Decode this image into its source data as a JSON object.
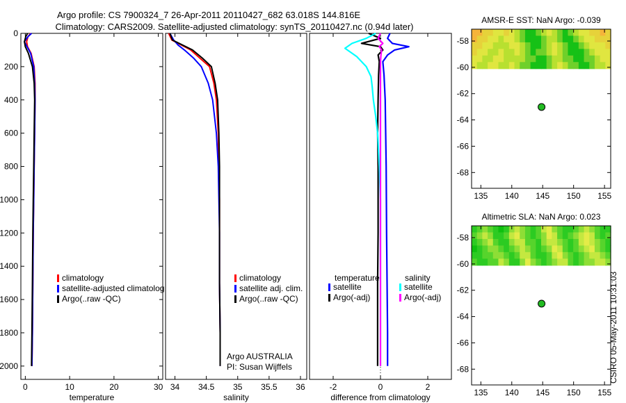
{
  "header": {
    "title_line1": "Argo profile: CS 7900324_7 26-Apr-2011 20110427_682 63.018S 144.816E",
    "title_line2": "Climatology: CARS2009. Satellite-adjusted climatology: synTS_20110427.nc (0.94d later)"
  },
  "side_label": "CSIRO 05-May-2011 10:31:03",
  "colors": {
    "climatology": "#ff0000",
    "satellite": "#0000ff",
    "argo": "#000000",
    "satellite_sal_diff": "#00ffff",
    "argo_sal_diff": "#ff00ff",
    "sst_warm": "#f5b43a",
    "sst_mid": "#e0e640",
    "sst_cool": "#16c116",
    "marker": "#22bb22"
  },
  "chart_data": [
    {
      "id": "temperature_profile",
      "type": "line",
      "xlabel": "temperature",
      "ylabel": "",
      "xlim": [
        -1,
        31
      ],
      "ylim": [
        2080,
        0
      ],
      "y_inverted": true,
      "xticks": [
        0,
        10,
        20,
        30
      ],
      "xtick_labels": [
        "0",
        "10",
        "20",
        "30"
      ],
      "yticks": [
        0,
        200,
        400,
        600,
        800,
        1000,
        1200,
        1400,
        1600,
        1800,
        2000
      ],
      "ytick_labels": [
        "0",
        "200",
        "400",
        "600",
        "800",
        "1000",
        "1200",
        "1400",
        "1600",
        "1800",
        "2000"
      ],
      "legend": [
        "climatology",
        "satellite-adjusted climatolog",
        "Argo(..raw -QC)"
      ],
      "legend_position": "lower-center",
      "series": [
        {
          "name": "climatology",
          "color": "#ff0000",
          "x": [
            1.2,
            0.6,
            0.3,
            0.5,
            1.3,
            2.0,
            2.2,
            2.2,
            2.1,
            2.0,
            1.9,
            1.8,
            1.7,
            1.6,
            1.5
          ],
          "y": [
            0,
            20,
            50,
            80,
            120,
            200,
            300,
            400,
            600,
            800,
            1000,
            1200,
            1500,
            1800,
            2000
          ]
        },
        {
          "name": "satellite-adjusted climatology",
          "color": "#0000ff",
          "x": [
            1.4,
            0.6,
            -0.2,
            0.4,
            1.2,
            1.9,
            2.1,
            2.2,
            2.1,
            2.0,
            1.9,
            1.8,
            1.7,
            1.6,
            1.5
          ],
          "y": [
            0,
            20,
            50,
            80,
            120,
            200,
            300,
            400,
            600,
            800,
            1000,
            1200,
            1500,
            1800,
            2000
          ]
        },
        {
          "name": "Argo(..raw -QC)",
          "color": "#000000",
          "x": [
            0.5,
            0.1,
            -0.2,
            0.0,
            0.7,
            1.6,
            2.0,
            2.1,
            2.0,
            1.9,
            1.8,
            1.7,
            1.6,
            1.5,
            1.4
          ],
          "y": [
            0,
            20,
            50,
            80,
            120,
            200,
            300,
            400,
            600,
            800,
            1000,
            1200,
            1500,
            1800,
            2000
          ]
        }
      ]
    },
    {
      "id": "salinity_profile",
      "type": "line",
      "xlabel": "salinity",
      "ylabel": "",
      "xlim": [
        33.85,
        36.1
      ],
      "ylim": [
        2080,
        0
      ],
      "y_inverted": true,
      "xticks": [
        34,
        34.5,
        35,
        35.5,
        36
      ],
      "xtick_labels": [
        "34",
        "34.5",
        "35",
        "35.5",
        "36"
      ],
      "legend": [
        "climatology",
        "satellite adj. clim.",
        "Argo(..raw -QC)"
      ],
      "legend_position": "lower-right",
      "annotation": [
        "Argo AUSTRALIA",
        "PI: Susan Wijffels"
      ],
      "series": [
        {
          "name": "climatology",
          "color": "#ff0000",
          "x": [
            33.9,
            33.95,
            34.1,
            34.25,
            34.4,
            34.55,
            34.62,
            34.66,
            34.69,
            34.7,
            34.71,
            34.71,
            34.71,
            34.72,
            34.72
          ],
          "y": [
            0,
            40,
            70,
            100,
            150,
            200,
            300,
            400,
            600,
            800,
            1000,
            1200,
            1500,
            1800,
            2000
          ]
        },
        {
          "name": "satellite adj. clim.",
          "color": "#0000ff",
          "x": [
            33.92,
            33.98,
            34.05,
            34.15,
            34.3,
            34.42,
            34.53,
            34.6,
            34.66,
            34.69,
            34.7,
            34.71,
            34.71,
            34.72,
            34.72
          ],
          "y": [
            0,
            40,
            70,
            100,
            150,
            200,
            300,
            400,
            600,
            800,
            1000,
            1200,
            1500,
            1800,
            2000
          ]
        },
        {
          "name": "Argo(..raw -QC)",
          "color": "#000000",
          "x": [
            33.92,
            33.96,
            34.12,
            34.28,
            34.44,
            34.58,
            34.64,
            34.68,
            34.7,
            34.71,
            34.71,
            34.71,
            34.71,
            34.72,
            34.72
          ],
          "y": [
            0,
            40,
            70,
            100,
            150,
            200,
            300,
            400,
            600,
            800,
            1000,
            1200,
            1500,
            1800,
            2000
          ]
        }
      ]
    },
    {
      "id": "difference_profile",
      "type": "line",
      "xlabel": "difference from climatology",
      "ylabel": "",
      "xlim": [
        -3,
        3
      ],
      "ylim": [
        2080,
        0
      ],
      "y_inverted": true,
      "xticks": [
        -2,
        0,
        2
      ],
      "xtick_labels": [
        "-2",
        "0",
        "2"
      ],
      "legend_left_title": "temperature",
      "legend_right_title": "salinity",
      "legend_left": [
        "satellite",
        "Argo(-adj)"
      ],
      "legend_right": [
        "satellite",
        "Argo(-adj)"
      ],
      "legend_position": "lower-center",
      "series": [
        {
          "name": "temperature satellite",
          "color": "#0000ff",
          "x": [
            0.4,
            0.3,
            0.5,
            1.2,
            0.6,
            0.3,
            0.1,
            0.15,
            0.2,
            0.22,
            0.24,
            0.25,
            0.26,
            0.28,
            0.3,
            0.3
          ],
          "y": [
            0,
            30,
            60,
            80,
            100,
            130,
            170,
            250,
            400,
            600,
            800,
            1000,
            1200,
            1500,
            1800,
            2000
          ]
        },
        {
          "name": "temperature Argo(-adj)",
          "color": "#000000",
          "x": [
            -0.5,
            0.0,
            -0.8,
            0.0,
            0.1,
            -0.1,
            -0.05,
            -0.08,
            -0.1,
            -0.12,
            -0.1,
            -0.1,
            -0.1,
            -0.12,
            -0.12,
            -0.12
          ],
          "y": [
            0,
            30,
            60,
            80,
            100,
            130,
            170,
            250,
            400,
            600,
            800,
            1000,
            1200,
            1500,
            1800,
            2000
          ]
        },
        {
          "name": "salinity satellite",
          "color": "#00ffff",
          "x": [
            -0.2,
            -0.6,
            -1.2,
            -1.5,
            -1.0,
            -0.6,
            -0.4,
            -0.35,
            -0.3,
            -0.2,
            -0.12,
            -0.05,
            0.0,
            0.0,
            0.0,
            0.0
          ],
          "y": [
            0,
            30,
            60,
            90,
            140,
            200,
            260,
            320,
            400,
            500,
            600,
            800,
            1000,
            1500,
            1800,
            2000
          ]
        },
        {
          "name": "salinity Argo(-adj)",
          "color": "#ff00ff",
          "x": [
            0.0,
            -0.1,
            0.1,
            -0.05,
            0.05,
            0.02,
            0.0,
            0.0,
            0.0,
            0.0,
            0.0,
            0.0,
            0.0,
            0.0,
            0.0,
            0.0
          ],
          "y": [
            0,
            30,
            60,
            80,
            100,
            130,
            170,
            250,
            400,
            600,
            800,
            1000,
            1200,
            1500,
            1800,
            2000
          ]
        }
      ]
    },
    {
      "id": "sst_map",
      "type": "heatmap",
      "title": "AMSR-E SST: NaN Argo: -0.039",
      "xlim": [
        133.5,
        156
      ],
      "ylim": [
        -69.2,
        -57.1
      ],
      "xticks": [
        135,
        140,
        145,
        150,
        155
      ],
      "xtick_labels": [
        "135",
        "140",
        "145",
        "150",
        "155"
      ],
      "yticks": [
        -58,
        -60,
        -62,
        -64,
        -66,
        -68
      ],
      "ytick_labels": [
        "-58",
        "-60",
        "-62",
        "-64",
        "-66",
        "-68"
      ],
      "data_lat_range": [
        -60.1,
        -57.1
      ],
      "cell_colors": [
        "#f5b43a",
        "#e6d23a",
        "#e0e640",
        "#b8e030",
        "#6fd02a",
        "#16c116"
      ],
      "grid": [
        [
          0,
          0,
          1,
          1,
          2,
          2,
          1,
          2,
          3,
          4,
          5,
          5,
          4,
          3,
          2,
          3,
          4,
          5,
          4,
          3,
          2,
          2,
          1,
          1,
          0,
          1
        ],
        [
          0,
          1,
          1,
          2,
          2,
          3,
          2,
          2,
          3,
          4,
          5,
          5,
          5,
          4,
          3,
          3,
          4,
          5,
          5,
          4,
          3,
          2,
          2,
          1,
          1,
          1
        ],
        [
          1,
          1,
          2,
          2,
          3,
          3,
          3,
          2,
          2,
          3,
          4,
          5,
          5,
          4,
          3,
          2,
          3,
          4,
          5,
          5,
          4,
          3,
          2,
          2,
          2,
          1
        ],
        [
          1,
          2,
          2,
          3,
          3,
          2,
          3,
          3,
          2,
          3,
          4,
          5,
          4,
          4,
          3,
          2,
          3,
          4,
          5,
          5,
          5,
          4,
          3,
          2,
          2,
          2
        ],
        [
          2,
          2,
          3,
          3,
          2,
          2,
          3,
          3,
          3,
          3,
          4,
          4,
          5,
          5,
          4,
          3,
          3,
          4,
          4,
          5,
          5,
          4,
          4,
          3,
          2,
          2
        ],
        [
          2,
          3,
          3,
          2,
          2,
          3,
          3,
          2,
          3,
          4,
          4,
          5,
          5,
          5,
          4,
          3,
          2,
          3,
          4,
          4,
          5,
          5,
          4,
          3,
          3,
          2
        ]
      ],
      "marker": {
        "lon": 144.816,
        "lat": -63.018
      }
    },
    {
      "id": "sla_map",
      "type": "heatmap",
      "title": "Altimetric SLA: NaN Argo: 0.023",
      "xlim": [
        133.5,
        156
      ],
      "ylim": [
        -69.2,
        -57.1
      ],
      "xticks": [
        135,
        140,
        145,
        150,
        155
      ],
      "xtick_labels": [
        "135",
        "140",
        "145",
        "150",
        "155"
      ],
      "yticks": [
        -58,
        -60,
        -62,
        -64,
        -66,
        -68
      ],
      "ytick_labels": [
        "-58",
        "-60",
        "-62",
        "-64",
        "-66",
        "-68"
      ],
      "data_lat_range": [
        -60.1,
        -57.1
      ],
      "cell_colors": [
        "#0fc00f",
        "#2ccb22",
        "#56d42c",
        "#8ede36",
        "#c4e840",
        "#e4ec48"
      ],
      "grid": [
        [
          1,
          2,
          3,
          2,
          1,
          0,
          1,
          3,
          4,
          3,
          2,
          1,
          2,
          4,
          5,
          3,
          2,
          1,
          1,
          2,
          3,
          4,
          3,
          2,
          1,
          1
        ],
        [
          2,
          3,
          4,
          3,
          1,
          1,
          2,
          4,
          5,
          3,
          2,
          1,
          2,
          3,
          5,
          4,
          2,
          1,
          2,
          3,
          4,
          5,
          4,
          2,
          1,
          2
        ],
        [
          1,
          2,
          3,
          4,
          2,
          1,
          1,
          3,
          4,
          4,
          2,
          2,
          1,
          3,
          4,
          4,
          3,
          2,
          1,
          2,
          4,
          5,
          4,
          3,
          2,
          1
        ],
        [
          0,
          1,
          2,
          3,
          3,
          2,
          1,
          2,
          3,
          4,
          3,
          2,
          1,
          2,
          3,
          5,
          4,
          2,
          1,
          2,
          3,
          4,
          5,
          3,
          2,
          1
        ],
        [
          1,
          1,
          2,
          2,
          3,
          3,
          2,
          1,
          2,
          4,
          4,
          2,
          1,
          1,
          2,
          4,
          5,
          3,
          2,
          1,
          2,
          3,
          4,
          4,
          3,
          2
        ],
        [
          2,
          1,
          1,
          2,
          2,
          4,
          3,
          1,
          1,
          3,
          5,
          3,
          2,
          1,
          2,
          3,
          4,
          4,
          2,
          1,
          2,
          3,
          3,
          4,
          4,
          3
        ]
      ],
      "marker": {
        "lon": 144.816,
        "lat": -63.018
      }
    }
  ]
}
